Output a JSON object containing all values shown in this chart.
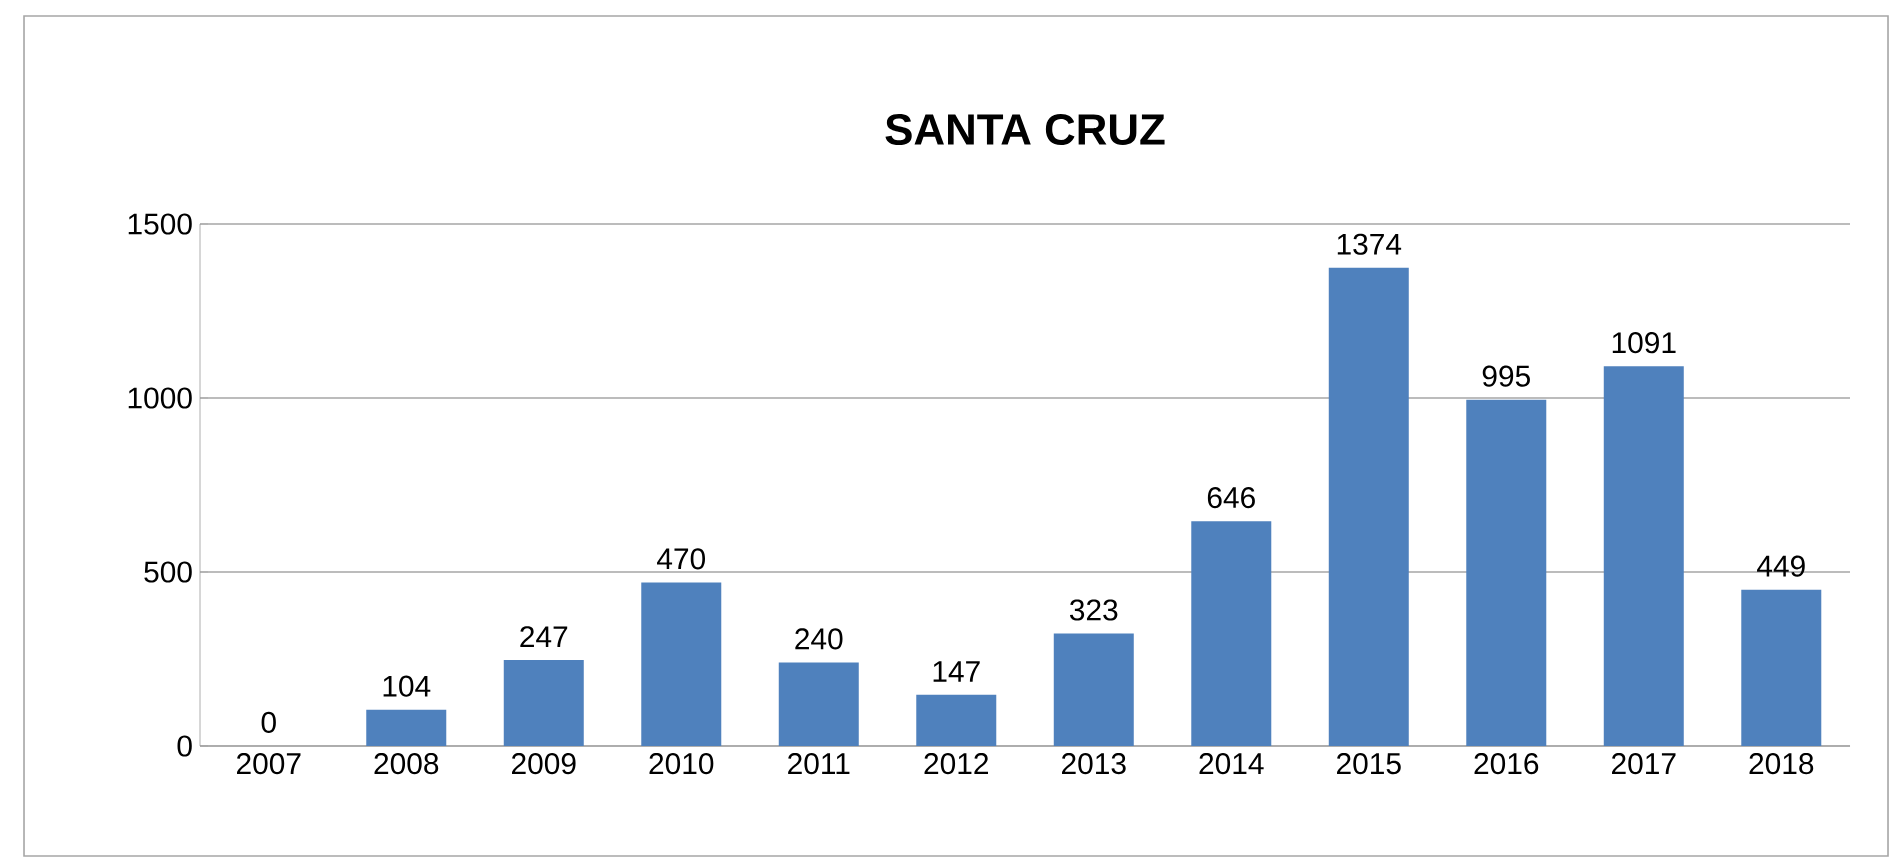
{
  "chart_data": {
    "type": "bar",
    "title": "SANTA CRUZ",
    "categories": [
      "2007",
      "2008",
      "2009",
      "2010",
      "2011",
      "2012",
      "2013",
      "2014",
      "2015",
      "2016",
      "2017",
      "2018"
    ],
    "values": [
      0,
      104,
      247,
      470,
      240,
      147,
      323,
      646,
      1374,
      995,
      1091,
      449
    ],
    "color": "#4f81bd",
    "ylim": [
      0,
      1500
    ],
    "yticks": [
      0,
      500,
      1000,
      1500
    ],
    "grid": "y",
    "data_labels": true
  }
}
